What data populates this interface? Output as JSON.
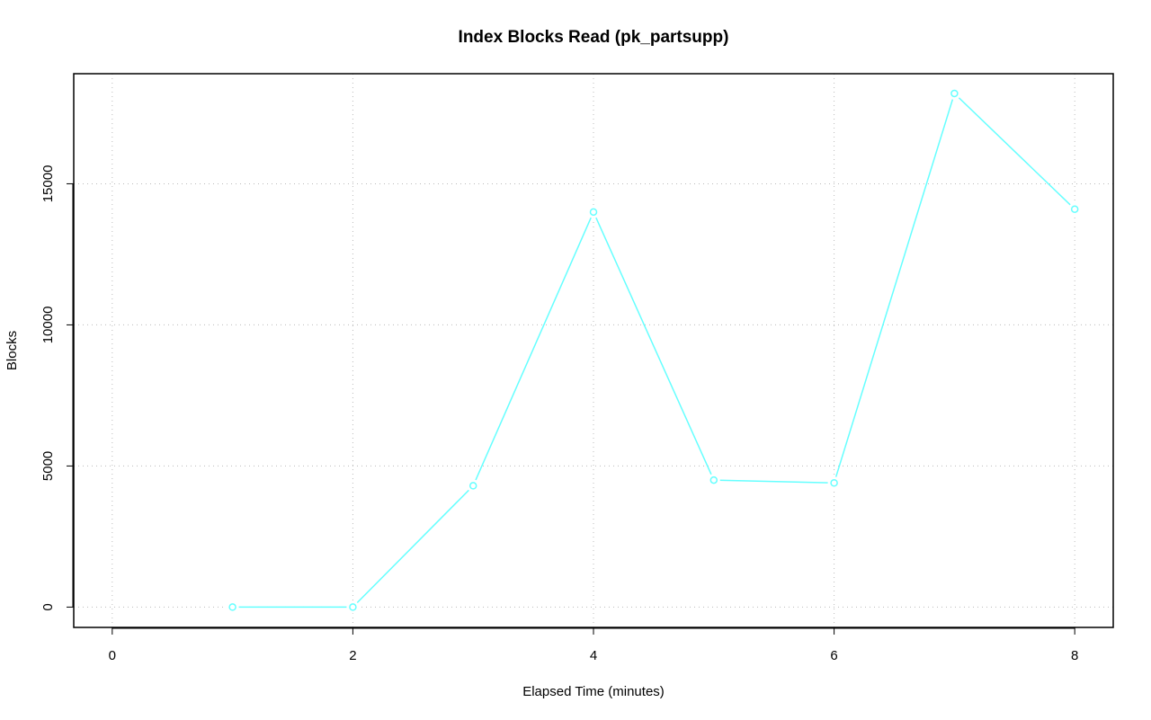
{
  "chart_data": {
    "type": "line",
    "title": "Index Blocks Read (pk_partsupp)",
    "x_label": "Elapsed Time (minutes)",
    "y_label": "Blocks",
    "x": [
      1,
      2,
      3,
      4,
      5,
      6,
      7,
      8
    ],
    "values": [
      0,
      0,
      4300,
      14000,
      4500,
      4400,
      18200,
      14100
    ],
    "color": "#66ffff",
    "xlim": [
      -0.32,
      8.32
    ],
    "xticks": [
      0,
      2,
      4,
      6,
      8
    ],
    "ylim": [
      -720,
      18900
    ],
    "yticks": [
      0,
      5000,
      10000,
      15000
    ],
    "grid": true
  }
}
